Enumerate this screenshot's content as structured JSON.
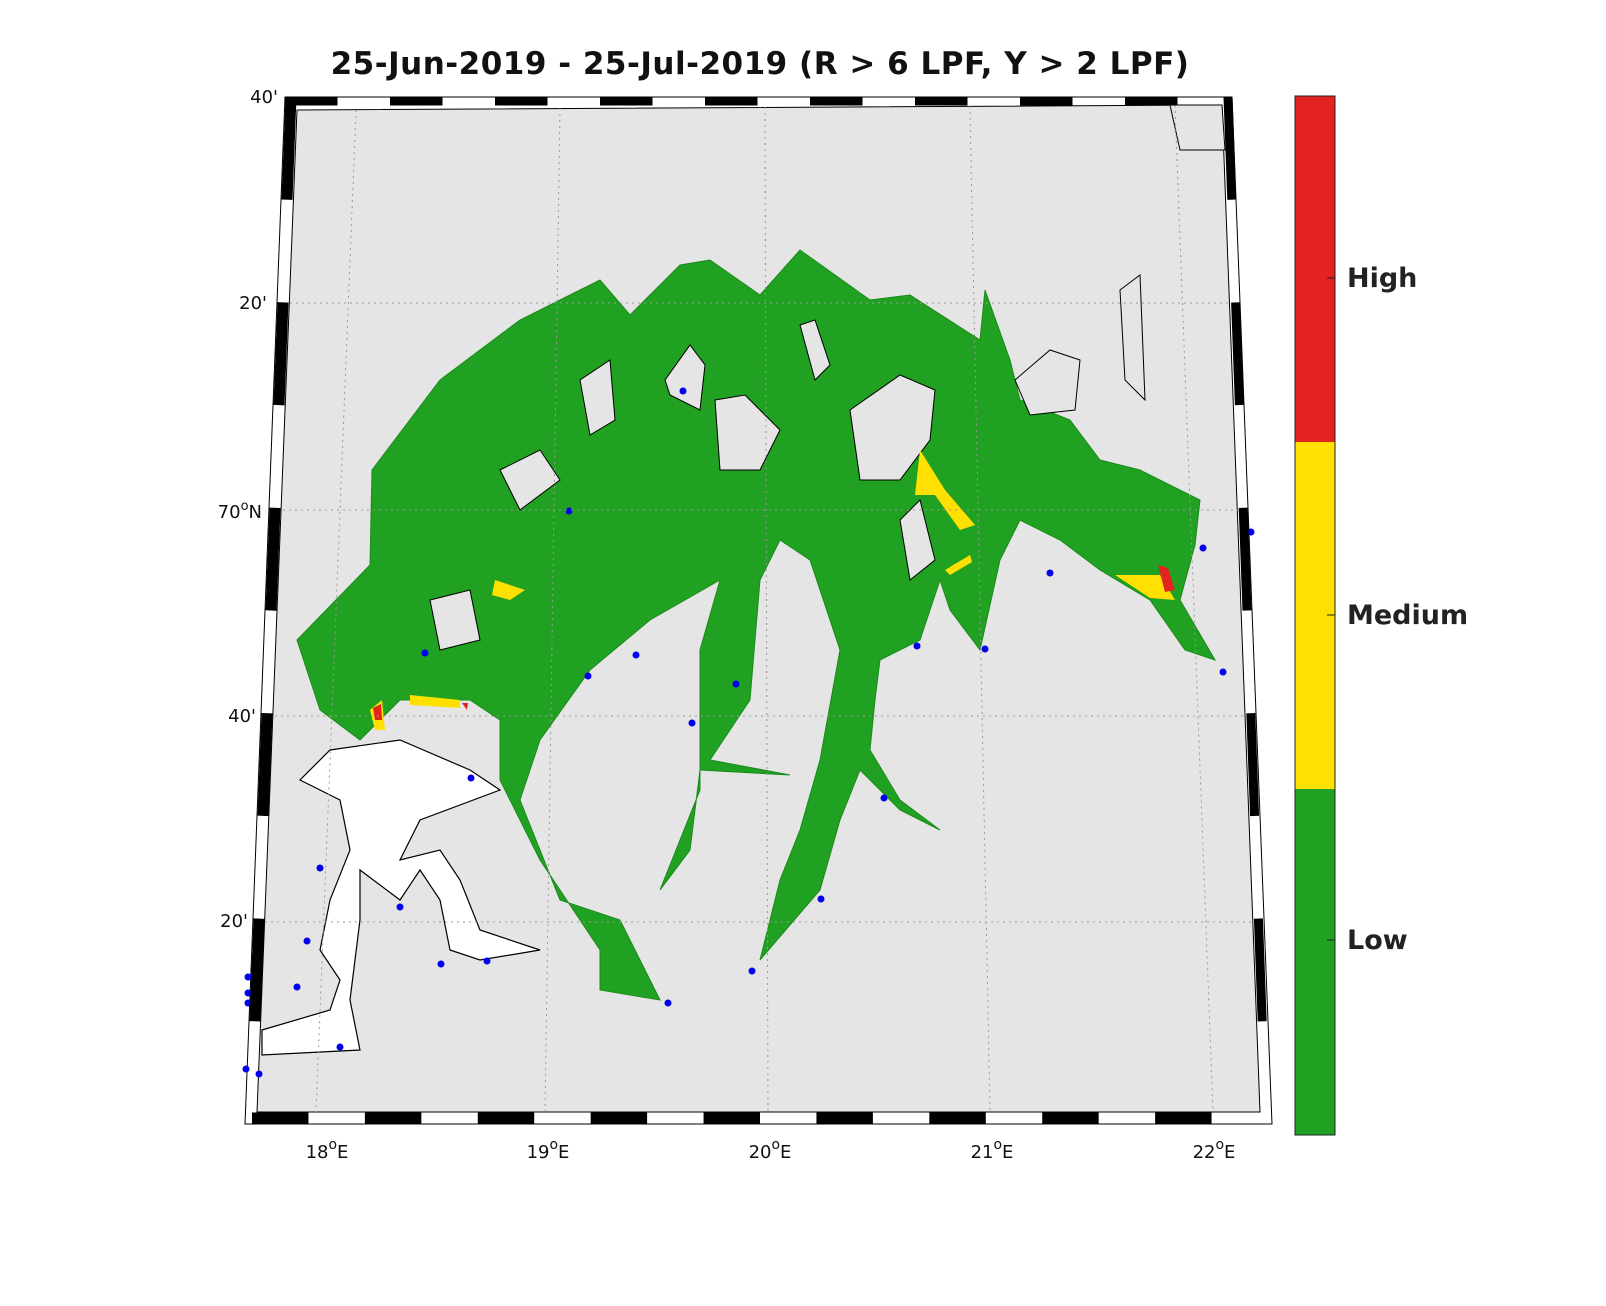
{
  "title": "25-Jun-2019  - 25-Jul-2019  (R > 6 LPF, Y > 2 LPF)",
  "axes": {
    "lon_ticks": [
      {
        "base": "18",
        "sup": "o",
        "suffix": "E"
      },
      {
        "base": "19",
        "sup": "o",
        "suffix": "E"
      },
      {
        "base": "20",
        "sup": "o",
        "suffix": "E"
      },
      {
        "base": "21",
        "sup": "o",
        "suffix": "E"
      },
      {
        "base": "22",
        "sup": "o",
        "suffix": "E"
      }
    ],
    "lat_ticks": [
      {
        "label": "40'"
      },
      {
        "label": "20'"
      },
      {
        "base": "70",
        "sup": "o",
        "suffix": "N"
      },
      {
        "label": "40'"
      },
      {
        "label": "20'"
      }
    ]
  },
  "colorbar": {
    "labels": [
      "High",
      "Medium",
      "Low"
    ],
    "colors": {
      "high": "#e3231f",
      "medium": "#ffe000",
      "low": "#21a121"
    }
  },
  "colors": {
    "land": "#e5e5e5",
    "water": "#ffffff",
    "station": "#0000ee",
    "coast": "#000000"
  }
}
